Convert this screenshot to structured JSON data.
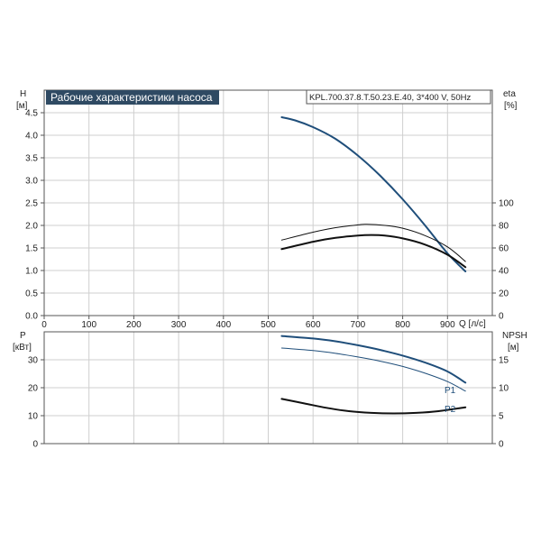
{
  "title": "Рабочие характеристики насоса",
  "model_label": "KPL.700.37.8.T.50.23.E.40, 3*400 V, 50Hz",
  "colors": {
    "blue": "#1f4e7a",
    "black": "#111111",
    "title_bg": "#2f4a63",
    "title_fg": "#ffffff"
  },
  "chart_data": [
    {
      "id": "upper",
      "type": "line",
      "xlabel": "Q [л/с]",
      "ylabel_left": [
        "H",
        "[м]"
      ],
      "ylabel_right": [
        "eta",
        "[%]"
      ],
      "xlim": [
        0,
        1000
      ],
      "ylim_left": [
        0,
        5
      ],
      "ylim_right_map": {
        "value_at_y0": 0,
        "per_unit_left": 40
      },
      "x_ticks": [
        "0",
        "100",
        "200",
        "300",
        "400",
        "500",
        "600",
        "700",
        "800",
        "900"
      ],
      "y_left_ticks": [
        "0.0",
        "0.5",
        "1.0",
        "1.5",
        "2.0",
        "2.5",
        "3.0",
        "3.5",
        "4.0",
        "4.5"
      ],
      "y_right_ticks": [
        "0",
        "20",
        "40",
        "60",
        "80",
        "100"
      ],
      "series": [
        {
          "axis": "left",
          "color": "#1f4e7a",
          "width": 2,
          "x": [
            530,
            560,
            600,
            650,
            700,
            750,
            800,
            850,
            900,
            940
          ],
          "y": [
            4.4,
            4.33,
            4.18,
            3.92,
            3.55,
            3.1,
            2.58,
            2.0,
            1.38,
            0.98
          ]
        },
        {
          "axis": "right",
          "color": "#111111",
          "width": 1,
          "x": [
            530,
            600,
            650,
            700,
            720,
            760,
            800,
            850,
            900,
            940
          ],
          "y": [
            67,
            74,
            78,
            80.5,
            81,
            80,
            77.5,
            71,
            61,
            48
          ]
        },
        {
          "axis": "right",
          "color": "#111111",
          "width": 2,
          "x": [
            530,
            600,
            650,
            700,
            730,
            760,
            800,
            850,
            900,
            940
          ],
          "y": [
            59,
            65.5,
            69,
            71,
            71.5,
            71,
            68.5,
            63,
            54,
            43
          ]
        }
      ]
    },
    {
      "id": "lower",
      "type": "line",
      "ylabel_left": [
        "P",
        "[кВт]"
      ],
      "ylabel_right": [
        "NPSH",
        "[м]"
      ],
      "xlim": [
        0,
        1000
      ],
      "ylim_left": [
        0,
        40
      ],
      "y_left_ticks": [
        "0",
        "10",
        "20",
        "30"
      ],
      "y_right_ticks": [
        "0",
        "5",
        "10",
        "15"
      ],
      "series": [
        {
          "name": "P1",
          "axis": "left",
          "color": "#1f4e7a",
          "width": 2,
          "x": [
            530,
            600,
            650,
            700,
            750,
            800,
            850,
            900,
            940
          ],
          "y": [
            38.5,
            37.6,
            36.6,
            35.2,
            33.5,
            31.5,
            29,
            25.8,
            21.8
          ]
        },
        {
          "name": "P2",
          "axis": "left",
          "color": "#1f4e7a",
          "width": 1,
          "x": [
            530,
            600,
            650,
            700,
            750,
            800,
            850,
            900,
            940
          ],
          "y": [
            34.2,
            33.3,
            32.3,
            31,
            29.5,
            27.6,
            25.2,
            22.2,
            18.8
          ]
        },
        {
          "axis": "right",
          "color": "#111111",
          "width": 2,
          "x": [
            530,
            580,
            630,
            680,
            730,
            780,
            830,
            880,
            940
          ],
          "y": [
            8,
            7.2,
            6.4,
            5.8,
            5.5,
            5.4,
            5.5,
            5.8,
            6.5
          ]
        }
      ]
    }
  ]
}
